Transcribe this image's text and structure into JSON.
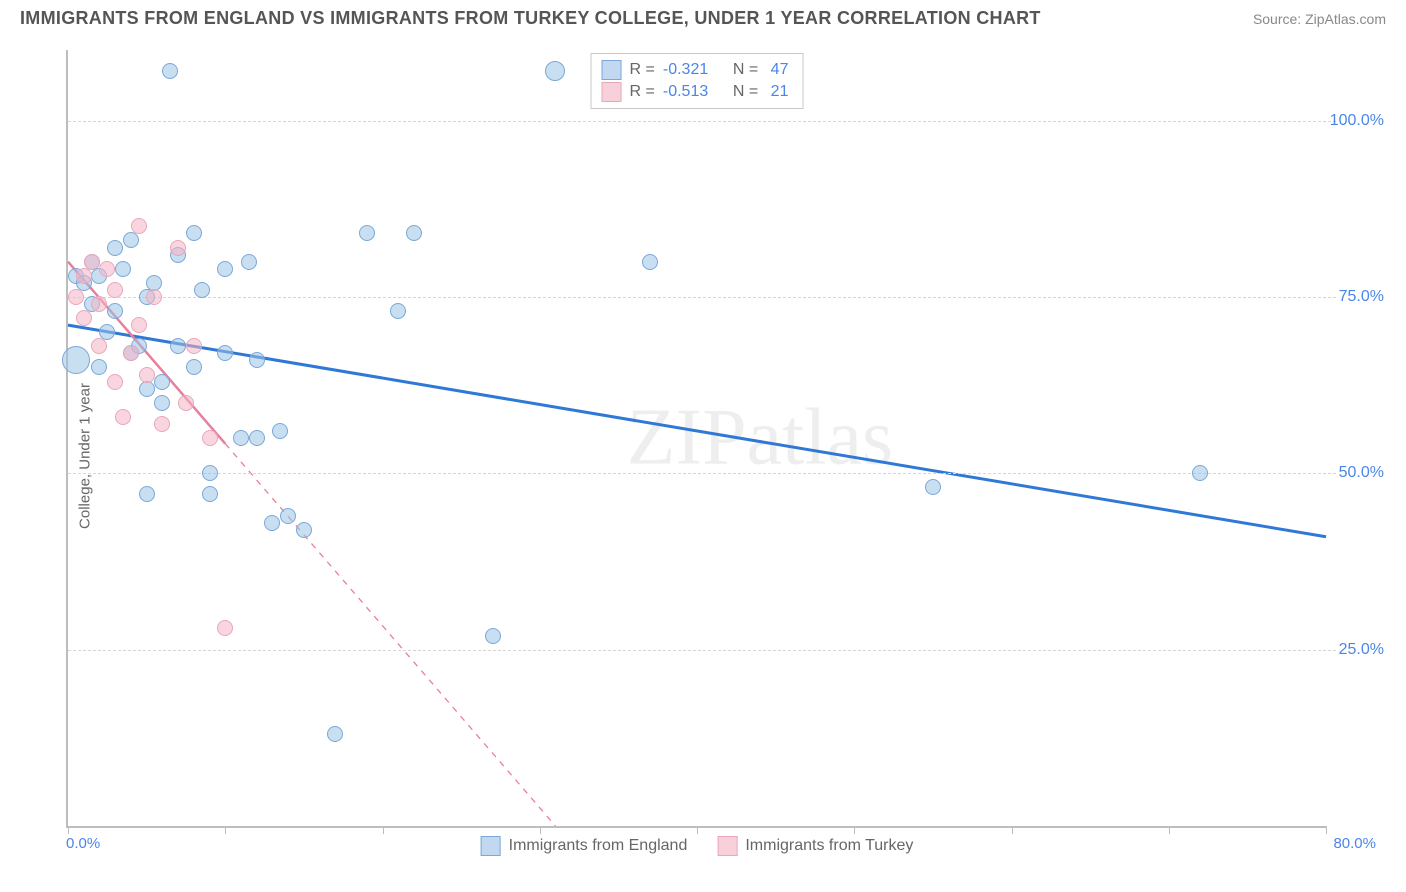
{
  "title_text": "IMMIGRANTS FROM ENGLAND VS IMMIGRANTS FROM TURKEY COLLEGE, UNDER 1 YEAR CORRELATION CHART",
  "source_label": "Source:",
  "source_name": "ZipAtlas.com",
  "ylabel": "College, Under 1 year",
  "watermark": "ZIPatlas",
  "chart": {
    "type": "scatter",
    "xlim": [
      0,
      80
    ],
    "ylim": [
      0,
      110
    ],
    "grid_y": [
      25,
      50,
      75,
      100
    ],
    "grid_color": "#d6d6d6",
    "x_ticks": [
      0,
      10,
      20,
      30,
      40,
      50,
      60,
      70,
      80
    ],
    "x_tick_labels": [
      {
        "v": 0,
        "t": "0.0%"
      },
      {
        "v": 80,
        "t": "80.0%"
      }
    ],
    "y_tick_labels": [
      {
        "v": 25,
        "t": "25.0%"
      },
      {
        "v": 50,
        "t": "50.0%"
      },
      {
        "v": 75,
        "t": "75.0%"
      },
      {
        "v": 100,
        "t": "100.0%"
      }
    ],
    "background_color": "#ffffff",
    "series": [
      {
        "name": "Immigrants from England",
        "marker_fill": "rgba(155,194,230,0.55)",
        "marker_stroke": "#7ba8d8",
        "marker_radius": 8,
        "line_color": "#2f78d6",
        "line_width": 3,
        "line_dash": "none",
        "trend": {
          "x1": 0,
          "y1": 71,
          "x2": 80,
          "y2": 41
        },
        "R": "-0.321",
        "N": "47",
        "swatch_fill": "#c1d8f0",
        "swatch_border": "#7ba8d8",
        "points": [
          {
            "x": 0.5,
            "y": 66,
            "r": 14
          },
          {
            "x": 0.5,
            "y": 78
          },
          {
            "x": 1,
            "y": 77
          },
          {
            "x": 1.5,
            "y": 80
          },
          {
            "x": 1.5,
            "y": 74
          },
          {
            "x": 2,
            "y": 78
          },
          {
            "x": 2,
            "y": 65
          },
          {
            "x": 2.5,
            "y": 70
          },
          {
            "x": 3,
            "y": 82
          },
          {
            "x": 3,
            "y": 73
          },
          {
            "x": 3.5,
            "y": 79
          },
          {
            "x": 4,
            "y": 67
          },
          {
            "x": 4,
            "y": 83
          },
          {
            "x": 4.5,
            "y": 68
          },
          {
            "x": 5,
            "y": 75
          },
          {
            "x": 5,
            "y": 62
          },
          {
            "x": 5,
            "y": 47
          },
          {
            "x": 5.5,
            "y": 77
          },
          {
            "x": 6,
            "y": 63
          },
          {
            "x": 6,
            "y": 60
          },
          {
            "x": 6.5,
            "y": 107
          },
          {
            "x": 7,
            "y": 81
          },
          {
            "x": 7,
            "y": 68
          },
          {
            "x": 8,
            "y": 65
          },
          {
            "x": 8,
            "y": 84
          },
          {
            "x": 8.5,
            "y": 76
          },
          {
            "x": 9,
            "y": 50
          },
          {
            "x": 9,
            "y": 47
          },
          {
            "x": 10,
            "y": 67
          },
          {
            "x": 10,
            "y": 79
          },
          {
            "x": 11,
            "y": 55
          },
          {
            "x": 11.5,
            "y": 80
          },
          {
            "x": 12,
            "y": 55
          },
          {
            "x": 12,
            "y": 66
          },
          {
            "x": 13,
            "y": 43
          },
          {
            "x": 13.5,
            "y": 56
          },
          {
            "x": 14,
            "y": 44
          },
          {
            "x": 15,
            "y": 42
          },
          {
            "x": 17,
            "y": 13
          },
          {
            "x": 19,
            "y": 84
          },
          {
            "x": 21,
            "y": 73
          },
          {
            "x": 22,
            "y": 84
          },
          {
            "x": 27,
            "y": 27
          },
          {
            "x": 31,
            "y": 107,
            "r": 10
          },
          {
            "x": 37,
            "y": 80
          },
          {
            "x": 55,
            "y": 48
          },
          {
            "x": 72,
            "y": 50
          }
        ]
      },
      {
        "name": "Immigrants from Turkey",
        "marker_fill": "rgba(244,180,196,0.55)",
        "marker_stroke": "#e8a7ba",
        "marker_radius": 8,
        "line_color": "#e87f9c",
        "line_width": 2.5,
        "line_dash": "dashed",
        "trend": {
          "x1": 0,
          "y1": 80,
          "x2": 31,
          "y2": 0
        },
        "trend_solid_until_x": 10,
        "R": "-0.513",
        "N": "21",
        "swatch_fill": "#f8d0da",
        "swatch_border": "#e8a7ba",
        "points": [
          {
            "x": 0.5,
            "y": 75
          },
          {
            "x": 1,
            "y": 78
          },
          {
            "x": 1,
            "y": 72
          },
          {
            "x": 1.5,
            "y": 80
          },
          {
            "x": 2,
            "y": 74
          },
          {
            "x": 2,
            "y": 68
          },
          {
            "x": 2.5,
            "y": 79
          },
          {
            "x": 3,
            "y": 63
          },
          {
            "x": 3,
            "y": 76
          },
          {
            "x": 3.5,
            "y": 58
          },
          {
            "x": 4,
            "y": 67
          },
          {
            "x": 4.5,
            "y": 85
          },
          {
            "x": 4.5,
            "y": 71
          },
          {
            "x": 5,
            "y": 64
          },
          {
            "x": 5.5,
            "y": 75
          },
          {
            "x": 6,
            "y": 57
          },
          {
            "x": 7,
            "y": 82
          },
          {
            "x": 7.5,
            "y": 60
          },
          {
            "x": 8,
            "y": 68
          },
          {
            "x": 9,
            "y": 55
          },
          {
            "x": 10,
            "y": 28
          }
        ]
      }
    ]
  },
  "stats_labels": {
    "R": "R =",
    "N": "N ="
  }
}
